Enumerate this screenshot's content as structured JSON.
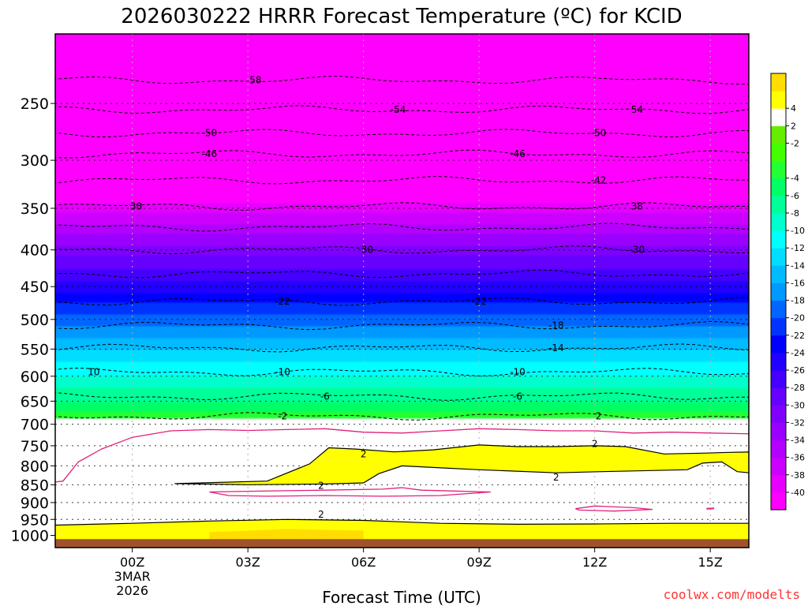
{
  "chart_data": {
    "type": "heatmap",
    "title": "2026030222 HRRR Forecast Temperature (ºC) for KCID",
    "xlabel": "Forecast Time (UTC)",
    "ylabel": "",
    "x_range_hours": [
      -2.0,
      16.0
    ],
    "x_ticks": [
      {
        "hour": 0,
        "label": "00Z",
        "sub1": "3MAR",
        "sub2": "2026"
      },
      {
        "hour": 3,
        "label": "03Z"
      },
      {
        "hour": 6,
        "label": "06Z"
      },
      {
        "hour": 9,
        "label": "09Z"
      },
      {
        "hour": 12,
        "label": "12Z"
      },
      {
        "hour": 15,
        "label": "15Z"
      }
    ],
    "y_axis": "pressure (hPa, log scale, top 200 hPa, bottom ~1040 hPa)",
    "y_range_hpa": [
      200,
      1040
    ],
    "y_ticks": [
      {
        "p": 250,
        "label": "250"
      },
      {
        "p": 300,
        "label": "300"
      },
      {
        "p": 350,
        "label": "350"
      },
      {
        "p": 400,
        "label": "400"
      },
      {
        "p": 450,
        "label": "450"
      },
      {
        "p": 500,
        "label": "500"
      },
      {
        "p": 550,
        "label": "550"
      },
      {
        "p": 600,
        "label": "600"
      },
      {
        "p": 650,
        "label": "650"
      },
      {
        "p": 700,
        "label": "700"
      },
      {
        "p": 750,
        "label": "750"
      },
      {
        "p": 800,
        "label": "800"
      },
      {
        "p": 850,
        "label": "850"
      },
      {
        "p": 900,
        "label": "900"
      },
      {
        "p": 950,
        "label": "950"
      },
      {
        "p": 1000,
        "label": "1000"
      }
    ],
    "ground_top_hpa": 1012,
    "temperature_profile": [
      {
        "p": 200,
        "t": -62
      },
      {
        "p": 230,
        "t": -58
      },
      {
        "p": 250,
        "t": -55
      },
      {
        "p": 280,
        "t": -50
      },
      {
        "p": 300,
        "t": -46
      },
      {
        "p": 330,
        "t": -42
      },
      {
        "p": 350,
        "t": -39
      },
      {
        "p": 400,
        "t": -31
      },
      {
        "p": 450,
        "t": -25
      },
      {
        "p": 475,
        "t": -22
      },
      {
        "p": 500,
        "t": -19
      },
      {
        "p": 550,
        "t": -14
      },
      {
        "p": 600,
        "t": -10
      },
      {
        "p": 650,
        "t": -6
      },
      {
        "p": 690,
        "t": -2
      },
      {
        "p": 700,
        "t": -1
      },
      {
        "p": 750,
        "t": 1
      },
      {
        "p": 800,
        "t": 2
      },
      {
        "p": 850,
        "t": 1
      },
      {
        "p": 900,
        "t": 0
      },
      {
        "p": 950,
        "t": 1
      },
      {
        "p": 990,
        "t": 2.5
      },
      {
        "p": 1012,
        "t": 3.5
      }
    ],
    "contours_dashed": [
      {
        "t": -58,
        "p": 232,
        "labels": [
          {
            "hour": 3.2,
            "text": "58"
          }
        ]
      },
      {
        "t": -54,
        "p": 255,
        "labels": [
          {
            "hour": 6.9,
            "text": "-54"
          },
          {
            "hour": 13.1,
            "text": "54"
          }
        ]
      },
      {
        "t": -50,
        "p": 275,
        "labels": [
          {
            "hour": 2.0,
            "text": "-50"
          },
          {
            "hour": 12.1,
            "text": "-50"
          }
        ]
      },
      {
        "t": -46,
        "p": 294,
        "labels": [
          {
            "hour": 2.0,
            "text": "-46"
          },
          {
            "hour": 10.0,
            "text": "-46"
          }
        ]
      },
      {
        "t": -42,
        "p": 320,
        "labels": [
          {
            "hour": 12.1,
            "text": "-42"
          }
        ]
      },
      {
        "t": -38,
        "p": 348,
        "labels": [
          {
            "hour": 0.1,
            "text": "38"
          },
          {
            "hour": 13.1,
            "text": "38"
          }
        ]
      },
      {
        "t": -34,
        "p": 372,
        "labels": []
      },
      {
        "t": -30,
        "p": 400,
        "labels": [
          {
            "hour": 6.1,
            "text": "30"
          },
          {
            "hour": 13.1,
            "text": "-30"
          }
        ]
      },
      {
        "t": -26,
        "p": 432,
        "labels": []
      },
      {
        "t": -22,
        "p": 472,
        "labels": [
          {
            "hour": 3.9,
            "text": "-22"
          },
          {
            "hour": 9.0,
            "text": "-22"
          }
        ]
      },
      {
        "t": -18,
        "p": 510,
        "labels": [
          {
            "hour": 11.0,
            "text": "-18"
          }
        ]
      },
      {
        "t": -14,
        "p": 548,
        "labels": [
          {
            "hour": 11.0,
            "text": "-14"
          }
        ]
      },
      {
        "t": -10,
        "p": 592,
        "labels": [
          {
            "hour": -1.0,
            "text": "10"
          },
          {
            "hour": 3.9,
            "text": "-10"
          },
          {
            "hour": 10.0,
            "text": "-10"
          }
        ]
      },
      {
        "t": -6,
        "p": 640,
        "labels": [
          {
            "hour": 5.0,
            "text": "-6"
          },
          {
            "hour": 10.0,
            "text": "-6"
          }
        ]
      },
      {
        "t": -2,
        "p": 682,
        "labels": [
          {
            "hour": 3.9,
            "text": "-2"
          },
          {
            "hour": 12.1,
            "text": "2"
          }
        ]
      }
    ],
    "solid_contour_labels": [
      {
        "hour": 6.0,
        "p": 770,
        "text": "2"
      },
      {
        "hour": 12.0,
        "p": 745,
        "text": "2"
      },
      {
        "hour": 11.0,
        "p": 830,
        "text": "2"
      },
      {
        "hour": 4.9,
        "p": 852,
        "text": "2"
      },
      {
        "hour": 4.9,
        "p": 935,
        "text": "2"
      }
    ],
    "colorbar": {
      "colors": [
        "#ff00ff",
        "#e600ff",
        "#cc00ff",
        "#b300ff",
        "#9900ff",
        "#8000ff",
        "#6600ff",
        "#4400ff",
        "#2200ff",
        "#0000ff",
        "#0033ff",
        "#0066ff",
        "#0099ff",
        "#00bbff",
        "#00ddff",
        "#00ffff",
        "#00ffcc",
        "#00ff99",
        "#00ff66",
        "#22ff33",
        "#44ff00",
        "#66ee00",
        "#ffffff",
        "#ffff00",
        "#ffdd00"
      ],
      "labels": [
        {
          "after_box": 1,
          "text": "-40"
        },
        {
          "after_box": 2,
          "text": "-38"
        },
        {
          "after_box": 3,
          "text": "-36"
        },
        {
          "after_box": 4,
          "text": "-34"
        },
        {
          "after_box": 5,
          "text": "-32"
        },
        {
          "after_box": 6,
          "text": "-30"
        },
        {
          "after_box": 7,
          "text": "-28"
        },
        {
          "after_box": 8,
          "text": "-26"
        },
        {
          "after_box": 9,
          "text": "-24"
        },
        {
          "after_box": 10,
          "text": "-22"
        },
        {
          "after_box": 11,
          "text": "-20"
        },
        {
          "after_box": 12,
          "text": "-18"
        },
        {
          "after_box": 13,
          "text": "-16"
        },
        {
          "after_box": 14,
          "text": "-14"
        },
        {
          "after_box": 15,
          "text": "-12"
        },
        {
          "after_box": 16,
          "text": "-10"
        },
        {
          "after_box": 17,
          "text": "-8"
        },
        {
          "after_box": 18,
          "text": "-6"
        },
        {
          "after_box": 19,
          "text": "-4"
        },
        {
          "after_box": 21,
          "text": "-2"
        },
        {
          "after_box": 22,
          "text": "2"
        },
        {
          "after_box": 23,
          "text": "4"
        }
      ]
    },
    "credit": "coolwx.com/modelts",
    "colors": {
      "ground": "#a0522d",
      "warm_zone": "#ffff00",
      "warm_line": "#000000",
      "freeze_line": "#e0207a",
      "credit": "#ff3333"
    }
  }
}
